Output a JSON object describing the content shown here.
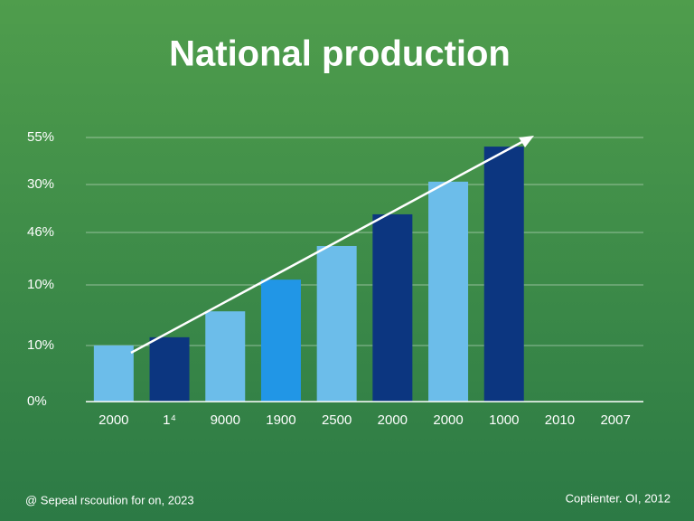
{
  "chart_data": {
    "type": "bar",
    "title": "National  production",
    "categories": [
      "2000",
      "1⁴",
      "9000",
      "1900",
      "2500",
      "2000",
      "2000",
      "1000",
      "2010",
      "2007"
    ],
    "values": [
      11.7,
      13.4,
      18.8,
      25.4,
      32.4,
      39.0,
      45.8,
      53.1,
      null,
      null
    ],
    "colors": [
      "#6cbdea",
      "#0c3680",
      "#6cbdea",
      "#2196e6",
      "#6cbdea",
      "#0c3680",
      "#6cbdea",
      "#0c3680",
      "#6cbdea",
      "#6cbdea"
    ],
    "ylim": [
      0,
      55
    ],
    "y_axis_labels": [
      "55%",
      "30%",
      "46%",
      "10%",
      "10%",
      "0%"
    ],
    "footer_left": "@ Sepeal rscoution for on, 2023",
    "footer_right": "Coptienter. OI, 2012"
  }
}
